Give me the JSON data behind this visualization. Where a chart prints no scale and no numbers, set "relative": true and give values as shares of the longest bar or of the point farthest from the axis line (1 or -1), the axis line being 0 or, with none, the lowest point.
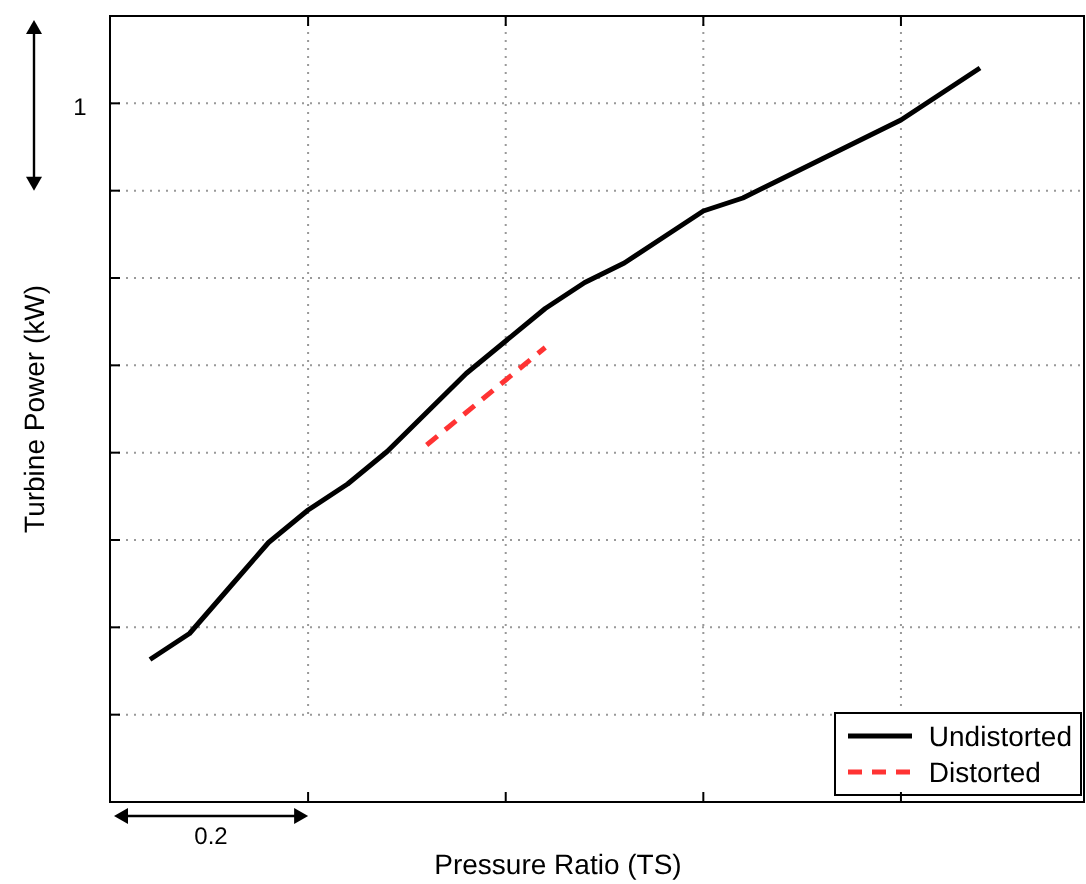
{
  "chart_data": {
    "type": "line",
    "xlabel": "Pressure Ratio (TS)",
    "ylabel": "Turbine Power (kW)",
    "relative": true,
    "categories": [
      null,
      null,
      null,
      null,
      null,
      null,
      null,
      null,
      null,
      null,
      null,
      null,
      null,
      null,
      null,
      null,
      null,
      null,
      null,
      null,
      null,
      null
    ],
    "series": [
      {
        "name": "Undistorted",
        "color": "#000000",
        "line_style": "solid",
        "values": [
          0.09,
          0.13,
          0.2,
          0.27,
          0.32,
          0.36,
          0.41,
          0.47,
          0.53,
          0.58,
          0.63,
          0.67,
          0.7,
          0.74,
          0.78,
          0.8,
          0.83,
          0.86,
          0.89,
          0.92,
          0.96,
          1
        ]
      },
      {
        "name": "Distorted",
        "color": "#ff3333",
        "line_style": "dashed",
        "values": [
          null,
          null,
          null,
          null,
          null,
          null,
          null,
          0.42,
          0.47,
          0.52,
          0.57,
          null,
          null,
          null,
          null,
          null,
          null,
          null,
          null,
          null,
          null,
          null
        ]
      }
    ],
    "annotations": [
      "1",
      "0.2"
    ],
    "grid": true,
    "legend": "bottom right",
    "marker": "none"
  }
}
